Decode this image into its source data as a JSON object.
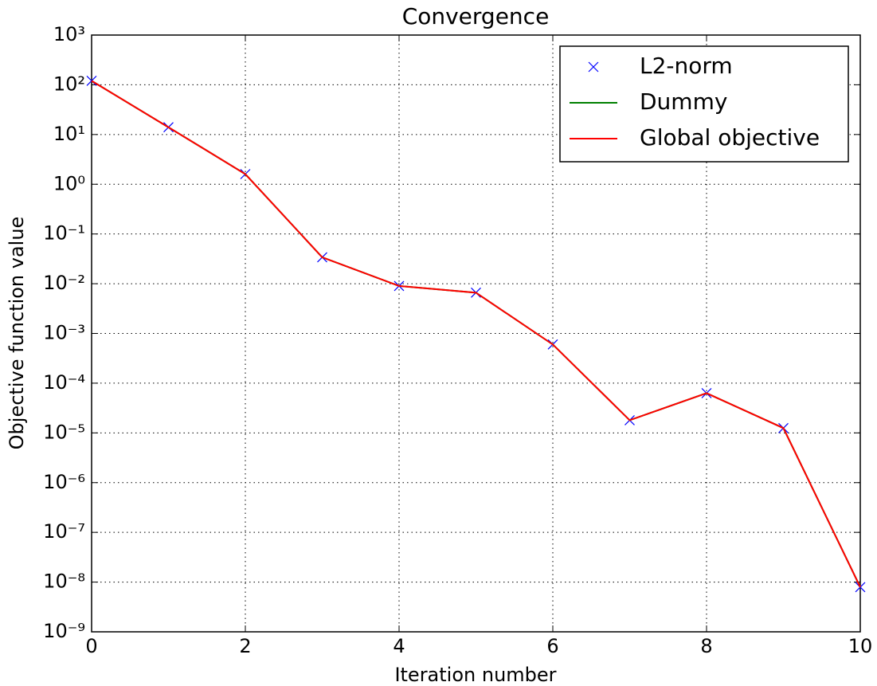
{
  "chart_data": {
    "type": "line",
    "title": "Convergence",
    "xlabel": "Iteration number",
    "ylabel": "Objective function value",
    "x": [
      0,
      1,
      2,
      3,
      4,
      5,
      6,
      7,
      8,
      9,
      10
    ],
    "series": [
      {
        "name": "L2-norm",
        "color": "#0000ff",
        "marker": "x",
        "values": [
          120,
          14,
          1.6,
          0.034,
          0.009,
          0.0066,
          0.0006,
          1.8e-05,
          6.3e-05,
          1.25e-05,
          7.9e-09
        ]
      },
      {
        "name": "Dummy",
        "color": "#008000",
        "values": [
          120,
          14,
          1.6,
          0.034,
          0.009,
          0.0066,
          0.0006,
          1.8e-05,
          6.3e-05,
          1.25e-05,
          7.9e-09
        ]
      },
      {
        "name": "Global objective",
        "color": "#ff0000",
        "values": [
          120,
          14,
          1.6,
          0.034,
          0.009,
          0.0066,
          0.0006,
          1.8e-05,
          6.3e-05,
          1.25e-05,
          7.9e-09
        ]
      }
    ],
    "xlim": [
      0,
      10
    ],
    "xticks": [
      0,
      2,
      4,
      6,
      8,
      10
    ],
    "ylim": [
      1e-09,
      1000
    ],
    "yscale": "log",
    "yticks": [
      {
        "value": 1e-09,
        "label": "10⁻⁹"
      },
      {
        "value": 1e-08,
        "label": "10⁻⁸"
      },
      {
        "value": 1e-07,
        "label": "10⁻⁷"
      },
      {
        "value": 1e-06,
        "label": "10⁻⁶"
      },
      {
        "value": 1e-05,
        "label": "10⁻⁵"
      },
      {
        "value": 0.0001,
        "label": "10⁻⁴"
      },
      {
        "value": 0.001,
        "label": "10⁻³"
      },
      {
        "value": 0.01,
        "label": "10⁻²"
      },
      {
        "value": 0.1,
        "label": "10⁻¹"
      },
      {
        "value": 1,
        "label": "10⁰"
      },
      {
        "value": 10,
        "label": "10¹"
      },
      {
        "value": 100,
        "label": "10²"
      },
      {
        "value": 1000,
        "label": "10³"
      }
    ],
    "grid": true,
    "legend": "upper right"
  }
}
